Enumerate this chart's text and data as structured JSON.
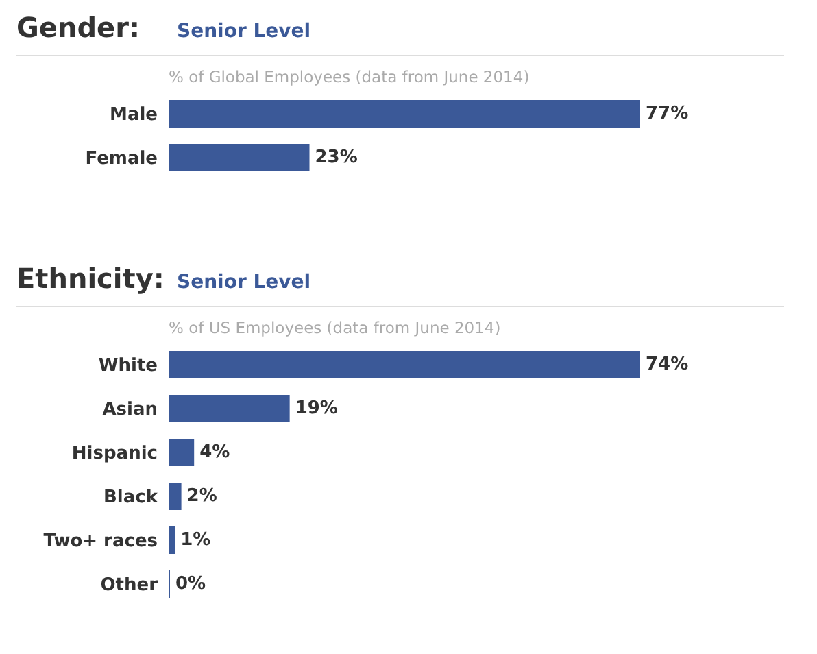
{
  "chart_data": [
    {
      "type": "bar",
      "orientation": "horizontal",
      "title": "Gender:",
      "subtitle": "Senior Level",
      "annotations": [
        "% of Global Employees (data from June 2014)"
      ],
      "categories": [
        "Male",
        "Female"
      ],
      "values": [
        77,
        23
      ],
      "value_labels": [
        "77%",
        "23%"
      ],
      "color": "#3b5998"
    },
    {
      "type": "bar",
      "orientation": "horizontal",
      "title": "Ethnicity:",
      "subtitle": "Senior Level",
      "annotations": [
        "% of US Employees (data from June 2014)"
      ],
      "categories": [
        "White",
        "Asian",
        "Hispanic",
        "Black",
        "Two+ races",
        "Other"
      ],
      "values": [
        74,
        19,
        4,
        2,
        1,
        0
      ],
      "value_labels": [
        "74%",
        "19%",
        "4%",
        "2%",
        "1%",
        "0%"
      ],
      "color": "#3b5998"
    }
  ]
}
